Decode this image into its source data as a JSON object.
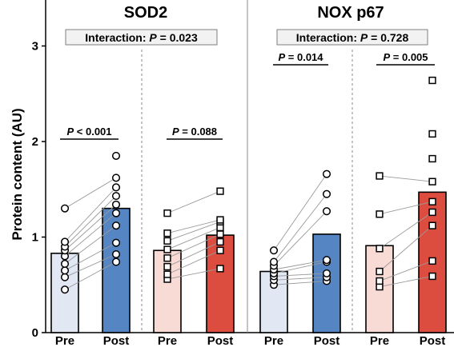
{
  "chart_data": {
    "type": "bar",
    "ylabel": "Protein content (AU)",
    "ylim": [
      0,
      3.25
    ],
    "yticks": [
      0,
      1,
      2,
      3
    ],
    "grid": false,
    "panels": [
      {
        "title": "SOD2",
        "interaction": {
          "label": "Interaction: ",
          "p_italic": "P",
          "p_rest": " = 0.023"
        },
        "groups": [
          {
            "comparison": {
              "p_italic": "P",
              "p_rest": " < 0.001"
            },
            "bars": [
              {
                "category": "Pre",
                "value": 0.83,
                "fill": "#e2e8f3",
                "marker": "circle",
                "points": [
                  0.45,
                  0.58,
                  0.65,
                  0.72,
                  0.8,
                  0.86,
                  0.9,
                  0.95,
                  1.3
                ]
              },
              {
                "category": "Post",
                "value": 1.3,
                "fill": "#5585c2",
                "marker": "circle",
                "points": [
                  0.74,
                  0.82,
                  0.94,
                  1.12,
                  1.25,
                  1.34,
                  1.43,
                  1.52,
                  1.62,
                  1.85
                ]
              }
            ]
          },
          {
            "comparison": {
              "p_italic": "P",
              "p_rest": " = 0.088"
            },
            "bars": [
              {
                "category": "Pre",
                "value": 0.86,
                "fill": "#f9dbd6",
                "marker": "square",
                "points": [
                  0.56,
                  0.61,
                  0.69,
                  0.78,
                  0.87,
                  0.96,
                  1.04,
                  1.25
                ]
              },
              {
                "category": "Post",
                "value": 1.02,
                "fill": "#dc4d40",
                "marker": "square",
                "points": [
                  0.67,
                  0.86,
                  0.95,
                  1.03,
                  1.1,
                  1.16,
                  1.18,
                  1.48
                ]
              }
            ]
          }
        ]
      },
      {
        "title": "NOX p67",
        "interaction": {
          "label": "Interaction: ",
          "p_italic": "P",
          "p_rest": " = 0.728"
        },
        "groups": [
          {
            "comparison": {
              "p_italic": "P",
              "p_rest": " = 0.014"
            },
            "bars": [
              {
                "category": "Pre",
                "value": 0.64,
                "fill": "#e2e8f3",
                "marker": "circle",
                "points": [
                  0.5,
                  0.55,
                  0.59,
                  0.62,
                  0.66,
                  0.7,
                  0.74,
                  0.86
                ]
              },
              {
                "category": "Post",
                "value": 1.03,
                "fill": "#5585c2",
                "marker": "circle",
                "points": [
                  0.54,
                  0.58,
                  0.62,
                  0.74,
                  0.76,
                  1.27,
                  1.45,
                  1.66
                ]
              }
            ]
          },
          {
            "comparison": {
              "p_italic": "P",
              "p_rest": " = 0.005"
            },
            "bars": [
              {
                "category": "Pre",
                "value": 0.91,
                "fill": "#f9dbd6",
                "marker": "square",
                "points": [
                  0.48,
                  0.54,
                  0.64,
                  0.88,
                  1.24,
                  1.64
                ]
              },
              {
                "category": "Post",
                "value": 1.47,
                "fill": "#dc4d40",
                "marker": "square",
                "points": [
                  0.59,
                  0.75,
                  1.12,
                  1.26,
                  1.37,
                  1.58,
                  1.82,
                  2.08,
                  2.64
                ]
              }
            ]
          }
        ]
      }
    ]
  }
}
